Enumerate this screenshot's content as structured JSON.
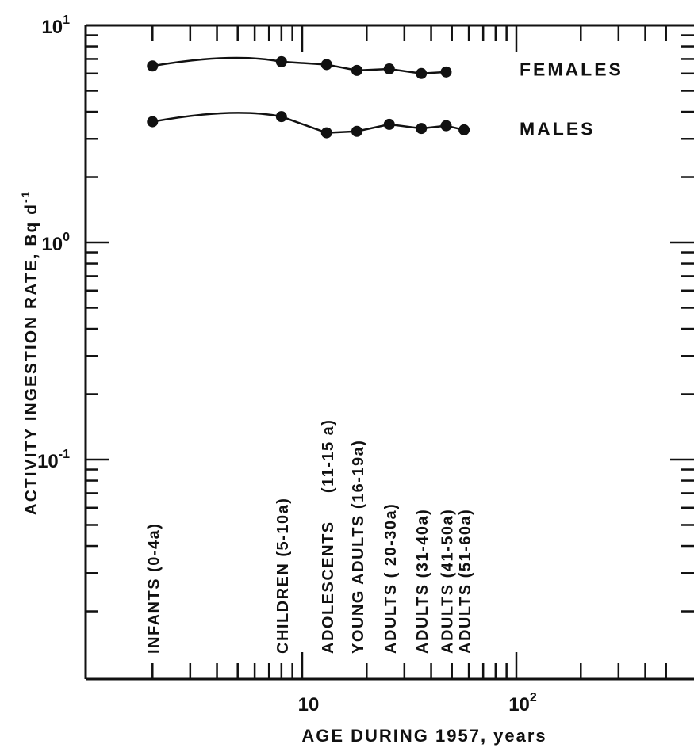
{
  "chart_data": {
    "type": "line",
    "title": "",
    "xlabel": "AGE DURING 1957, years",
    "ylabel": "ACTIVITY INGESTION RATE, Bq d",
    "ylabel_sup": "-1",
    "x_scale": "log",
    "y_scale": "log",
    "xlim": [
      1,
      500
    ],
    "ylim": [
      0.01,
      10
    ],
    "x_ticks": [
      {
        "value": 10,
        "label": "10",
        "sup": ""
      },
      {
        "value": 100,
        "label": "10",
        "sup": "2"
      }
    ],
    "y_ticks": [
      {
        "value": 10,
        "label": "10",
        "sup": "1"
      },
      {
        "value": 1,
        "label": "10",
        "sup": "0"
      },
      {
        "value": 0.1,
        "label": "10",
        "sup": "-1"
      }
    ],
    "series": [
      {
        "name": "FEMALES",
        "x": [
          2,
          8,
          13,
          18,
          25.5,
          36,
          47
        ],
        "y": [
          6.5,
          6.8,
          6.6,
          6.2,
          6.3,
          6.0,
          6.1
        ]
      },
      {
        "name": "MALES",
        "x": [
          2,
          8,
          13,
          18,
          25.5,
          36,
          47,
          57
        ],
        "y": [
          3.6,
          3.8,
          3.2,
          3.25,
          3.5,
          3.35,
          3.45,
          3.3
        ]
      }
    ],
    "group_labels": [
      {
        "x": 2,
        "text": "INFANTS (0-4a)"
      },
      {
        "x": 8,
        "text": "CHILDREN (5-10a)"
      },
      {
        "x": 13,
        "text": "ADOLESCENTS     (11-15 a)"
      },
      {
        "x": 18,
        "text": "YOUNG ADULTS (16-19a)"
      },
      {
        "x": 25.5,
        "text": "ADULTS ( 20-30a)"
      },
      {
        "x": 36,
        "text": "ADULTS (31-40a)"
      },
      {
        "x": 47,
        "text": "ADULTS (41-50a)"
      },
      {
        "x": 57,
        "text": "ADULTS (51-60a)"
      }
    ],
    "grid": false,
    "legend": "inline-right"
  }
}
